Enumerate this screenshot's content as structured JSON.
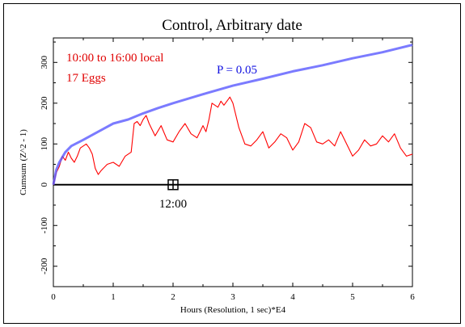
{
  "chart_data": {
    "type": "line",
    "title": "Control, Arbitrary date",
    "xlabel": "Hours (Resolution, 1 sec)*E4",
    "ylabel": "Cumsum (Z^2 - 1)",
    "xlim": [
      0,
      6
    ],
    "ylim": [
      -250,
      360
    ],
    "x_ticks": [
      0,
      1,
      2,
      3,
      4,
      5,
      6
    ],
    "y_ticks": [
      -200,
      -100,
      0,
      100,
      200,
      300
    ],
    "grid": false,
    "annotations": {
      "time_range": "10:00 to 16:00 local",
      "eggs": "17 Eggs",
      "p_label": "P = 0.05",
      "marker_label": "12:00"
    },
    "marker": {
      "x": 2.0,
      "y": 0
    },
    "series": [
      {
        "name": "Cumsum",
        "color": "#ff0000",
        "x": [
          0.0,
          0.05,
          0.1,
          0.15,
          0.2,
          0.25,
          0.3,
          0.35,
          0.4,
          0.45,
          0.5,
          0.55,
          0.6,
          0.65,
          0.7,
          0.75,
          0.8,
          0.9,
          1.0,
          1.1,
          1.2,
          1.3,
          1.35,
          1.4,
          1.45,
          1.5,
          1.55,
          1.6,
          1.7,
          1.8,
          1.9,
          2.0,
          2.1,
          2.2,
          2.3,
          2.4,
          2.5,
          2.55,
          2.6,
          2.65,
          2.7,
          2.75,
          2.8,
          2.85,
          2.9,
          2.95,
          3.0,
          3.05,
          3.1,
          3.2,
          3.3,
          3.4,
          3.5,
          3.6,
          3.7,
          3.8,
          3.9,
          4.0,
          4.1,
          4.2,
          4.3,
          4.4,
          4.5,
          4.6,
          4.7,
          4.8,
          4.9,
          5.0,
          5.1,
          5.2,
          5.3,
          5.4,
          5.5,
          5.6,
          5.7,
          5.8,
          5.9,
          6.0
        ],
        "values": [
          0,
          30,
          45,
          70,
          60,
          80,
          65,
          55,
          70,
          90,
          95,
          100,
          90,
          75,
          40,
          25,
          35,
          50,
          55,
          45,
          70,
          80,
          150,
          155,
          145,
          160,
          170,
          150,
          120,
          145,
          110,
          105,
          130,
          150,
          125,
          115,
          145,
          130,
          160,
          200,
          195,
          190,
          205,
          195,
          205,
          215,
          200,
          170,
          140,
          100,
          95,
          110,
          130,
          90,
          105,
          125,
          115,
          85,
          105,
          150,
          140,
          105,
          100,
          110,
          95,
          130,
          100,
          70,
          85,
          110,
          95,
          100,
          120,
          105,
          125,
          90,
          70,
          75
        ]
      },
      {
        "name": "P = 0.05",
        "color": "#5a5aff",
        "x": [
          0.0,
          0.05,
          0.1,
          0.2,
          0.3,
          0.5,
          0.75,
          1.0,
          1.25,
          1.5,
          1.75,
          2.0,
          2.5,
          3.0,
          3.5,
          4.0,
          4.5,
          5.0,
          5.5,
          6.0
        ],
        "values": [
          0,
          37,
          55,
          80,
          95,
          110,
          130,
          150,
          160,
          175,
          188,
          200,
          222,
          243,
          260,
          278,
          293,
          310,
          325,
          343
        ]
      }
    ]
  }
}
